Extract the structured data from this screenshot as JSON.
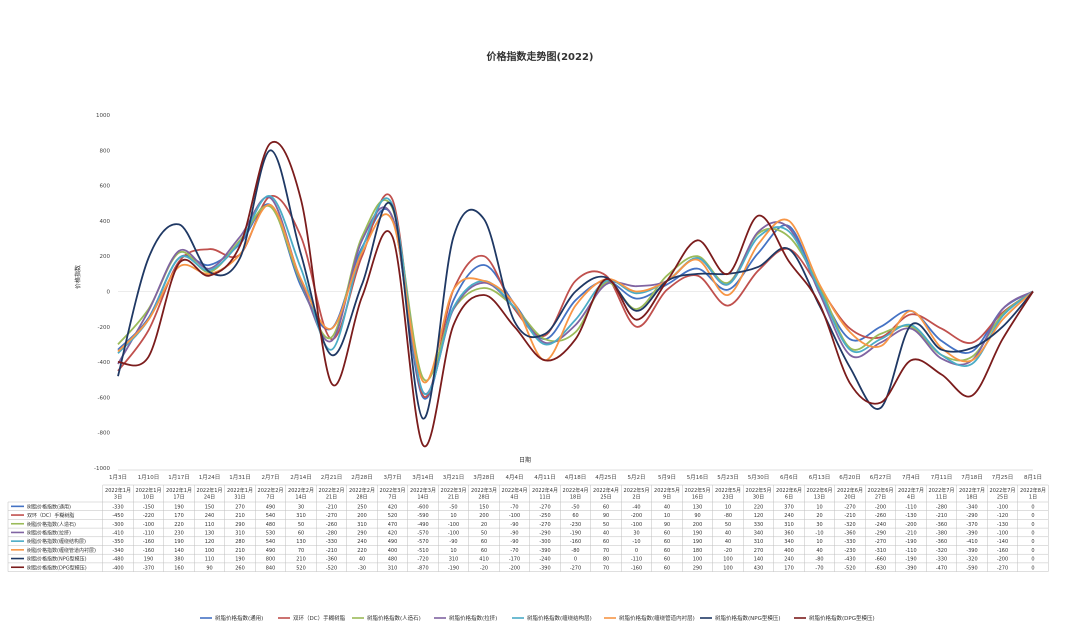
{
  "chart_data": {
    "type": "line",
    "title": "价格指数走势图(2022)",
    "xlabel": "日期",
    "ylabel": "价格指数",
    "ylim": [
      -1000,
      1000
    ],
    "yticks": [
      -1000,
      -800,
      -600,
      -400,
      -200,
      0,
      200,
      400,
      600,
      800,
      1000
    ],
    "grid": false,
    "legend_position": "bottom",
    "categories": [
      "1月3日",
      "1月10日",
      "1月17日",
      "1月24日",
      "1月31日",
      "2月7日",
      "2月14日",
      "2月21日",
      "2月28日",
      "3月7日",
      "3月14日",
      "3月21日",
      "3月28日",
      "4月4日",
      "4月11日",
      "4月18日",
      "4月25日",
      "5月2日",
      "5月9日",
      "5月16日",
      "5月23日",
      "5月30日",
      "6月6日",
      "6月13日",
      "6月20日",
      "6月27日",
      "7月4日",
      "7月11日",
      "7月18日",
      "7月25日",
      "8月1日"
    ],
    "table_header": [
      "2022年1月\n3日",
      "2022年1月\n10日",
      "2022年1月\n17日",
      "2022年1月\n24日",
      "2022年1月\n31日",
      "2022年2月\n7日",
      "2022年2月\n14日",
      "2022年2月\n21日",
      "2022年2月\n28日",
      "2022年3月\n7日",
      "2022年3月\n14日",
      "2022年3月\n21日",
      "2022年3月\n28日",
      "2022年4月\n4日",
      "2022年4月\n11日",
      "2022年4月\n18日",
      "2022年4月\n25日",
      "2022年5月\n2日",
      "2022年5月\n9日",
      "2022年5月\n16日",
      "2022年5月\n23日",
      "2022年5月\n30日",
      "2022年6月\n6日",
      "2022年6月\n13日",
      "2022年6月\n20日",
      "2022年6月\n27日",
      "2022年7月\n4日",
      "2022年7月\n11日",
      "2022年7月\n18日",
      "2022年7月\n25日",
      "2022年8月\n1日"
    ],
    "series": [
      {
        "name": "树脂价格指数(通用)",
        "color": "#4472c4",
        "values": [
          -330,
          -150,
          190,
          150,
          270,
          490,
          30,
          -210,
          250,
          420,
          -600,
          -50,
          150,
          -70,
          -270,
          -50,
          60,
          -40,
          40,
          130,
          10,
          220,
          370,
          10,
          -270,
          -200,
          -110,
          -280,
          -340,
          -100,
          0
        ]
      },
      {
        "name": "双环（DC）手糊树脂",
        "color": "#c0504d",
        "values": [
          -450,
          -220,
          170,
          240,
          210,
          540,
          310,
          -270,
          200,
          520,
          -590,
          10,
          200,
          -100,
          -250,
          60,
          90,
          -200,
          10,
          90,
          -80,
          120,
          240,
          20,
          -210,
          -260,
          -130,
          -210,
          -290,
          -120,
          0
        ]
      },
      {
        "name": "树脂价格指数(人造石)",
        "color": "#9bbb59",
        "values": [
          -300,
          -100,
          220,
          110,
          290,
          480,
          50,
          -260,
          310,
          470,
          -490,
          -100,
          20,
          -90,
          -270,
          -230,
          50,
          -100,
          90,
          200,
          50,
          330,
          310,
          30,
          -320,
          -240,
          -200,
          -360,
          -370,
          -130,
          0
        ]
      },
      {
        "name": "树脂价格指数(拉挤)",
        "color": "#8064a2",
        "values": [
          -410,
          -110,
          230,
          130,
          310,
          530,
          60,
          -280,
          290,
          420,
          -570,
          -100,
          50,
          -90,
          -290,
          -190,
          40,
          30,
          60,
          190,
          40,
          340,
          360,
          -10,
          -360,
          -290,
          -210,
          -380,
          -390,
          -100,
          0
        ]
      },
      {
        "name": "树脂价格指数(缠绕结构层)",
        "color": "#4bacc6",
        "values": [
          -350,
          -160,
          190,
          120,
          280,
          540,
          130,
          -330,
          240,
          490,
          -570,
          -90,
          60,
          -90,
          -300,
          -160,
          60,
          -10,
          60,
          190,
          40,
          310,
          340,
          10,
          -330,
          -270,
          -190,
          -360,
          -410,
          -140,
          0
        ]
      },
      {
        "name": "树脂价格指数(缠绕管道内衬层)",
        "color": "#f79646",
        "values": [
          -340,
          -160,
          140,
          100,
          210,
          490,
          70,
          -210,
          220,
          400,
          -510,
          10,
          60,
          -70,
          -390,
          -80,
          70,
          0,
          60,
          180,
          -20,
          270,
          400,
          40,
          -230,
          -310,
          -110,
          -320,
          -390,
          -160,
          0
        ]
      },
      {
        "name": "树脂价格指数(NPG型模压)",
        "color": "#1f3864",
        "values": [
          -480,
          190,
          380,
          110,
          190,
          800,
          210,
          -360,
          40,
          480,
          -720,
          310,
          410,
          -170,
          -240,
          0,
          80,
          -110,
          60,
          100,
          100,
          140,
          240,
          -80,
          -430,
          -660,
          -190,
          -330,
          -320,
          -200,
          0
        ]
      },
      {
        "name": "树脂价格指数(DPG型模压)",
        "color": "#7b1c1c",
        "values": [
          -400,
          -370,
          160,
          90,
          260,
          840,
          520,
          -520,
          -30,
          310,
          -870,
          -190,
          -20,
          -200,
          -390,
          -270,
          70,
          -160,
          60,
          290,
          100,
          430,
          170,
          -70,
          -520,
          -630,
          -390,
          -470,
          -590,
          -270,
          0
        ]
      }
    ]
  }
}
